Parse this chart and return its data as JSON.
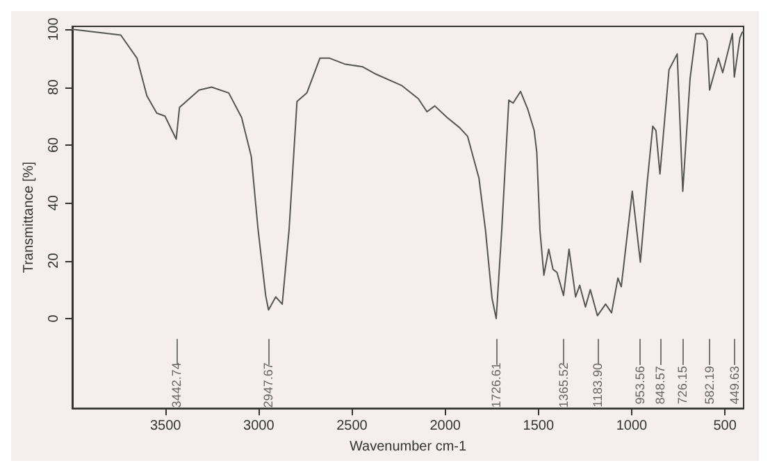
{
  "chart_data": {
    "type": "line",
    "xlabel": "Wavenumber cm-1",
    "ylabel": "Transmittance [%]",
    "xlim": [
      4000,
      400
    ],
    "xticks": [
      3500,
      3000,
      2500,
      2000,
      1500,
      1000,
      500
    ],
    "ylim": [
      -31,
      101
    ],
    "yticks": [
      0,
      20,
      40,
      60,
      80,
      100
    ],
    "grid": false,
    "marker": "none",
    "series": [
      {
        "color": "#555555",
        "x": [
          4000,
          3740,
          3653,
          3600,
          3547,
          3503,
          3442.74,
          3425,
          3320,
          3253,
          3161,
          3092,
          3040,
          3004,
          2963,
          2947.67,
          2909,
          2874,
          2837,
          2795,
          2742,
          2672,
          2620,
          2540,
          2442,
          2372,
          2232,
          2144,
          2098,
          2056,
          1990,
          1923,
          1880,
          1819,
          1784,
          1749,
          1726.61,
          1697,
          1659,
          1636,
          1596,
          1558,
          1523,
          1509,
          1492,
          1471,
          1445,
          1422,
          1401,
          1365.52,
          1336,
          1301,
          1279,
          1248,
          1222,
          1183.9,
          1140,
          1108,
          1074,
          1056,
          997,
          953.56,
          917,
          887,
          870,
          848.57,
          800,
          756,
          726.15,
          687,
          656,
          617,
          596,
          582.19,
          535,
          512,
          460,
          449.63,
          420,
          407,
          400
        ],
        "values": [
          100,
          98,
          90,
          77,
          71,
          70,
          62,
          73,
          79,
          80,
          78,
          69.5,
          56,
          31,
          8,
          3,
          7.5,
          5,
          31,
          75,
          78,
          90,
          90,
          88,
          87,
          84.5,
          80.5,
          76,
          71.5,
          73.5,
          69.5,
          66,
          63,
          48.5,
          30.5,
          7,
          0,
          30.5,
          75.5,
          74.5,
          78.5,
          72.5,
          65,
          57.5,
          30.5,
          15,
          24,
          17,
          16,
          8,
          24,
          7.5,
          11.5,
          4,
          10,
          1,
          5,
          2,
          14,
          11,
          44,
          19.5,
          47,
          66.5,
          65,
          50,
          86,
          91.5,
          44,
          83,
          98.5,
          98.5,
          96,
          79,
          90,
          85,
          98.5,
          83.5,
          97,
          99,
          99
        ]
      }
    ],
    "annotations": [
      {
        "text": "3442.74",
        "x": 3442.74
      },
      {
        "text": "2947.67",
        "x": 2947.67
      },
      {
        "text": "1726.61",
        "x": 1726.61
      },
      {
        "text": "1365.52",
        "x": 1365.52
      },
      {
        "text": "1183.90",
        "x": 1183.9
      },
      {
        "text": "953.56",
        "x": 953.56
      },
      {
        "text": "848.57",
        "x": 848.57
      },
      {
        "text": "726.15",
        "x": 726.15
      },
      {
        "text": "582.19",
        "x": 582.19
      },
      {
        "text": "449.63",
        "x": 449.63
      }
    ]
  }
}
